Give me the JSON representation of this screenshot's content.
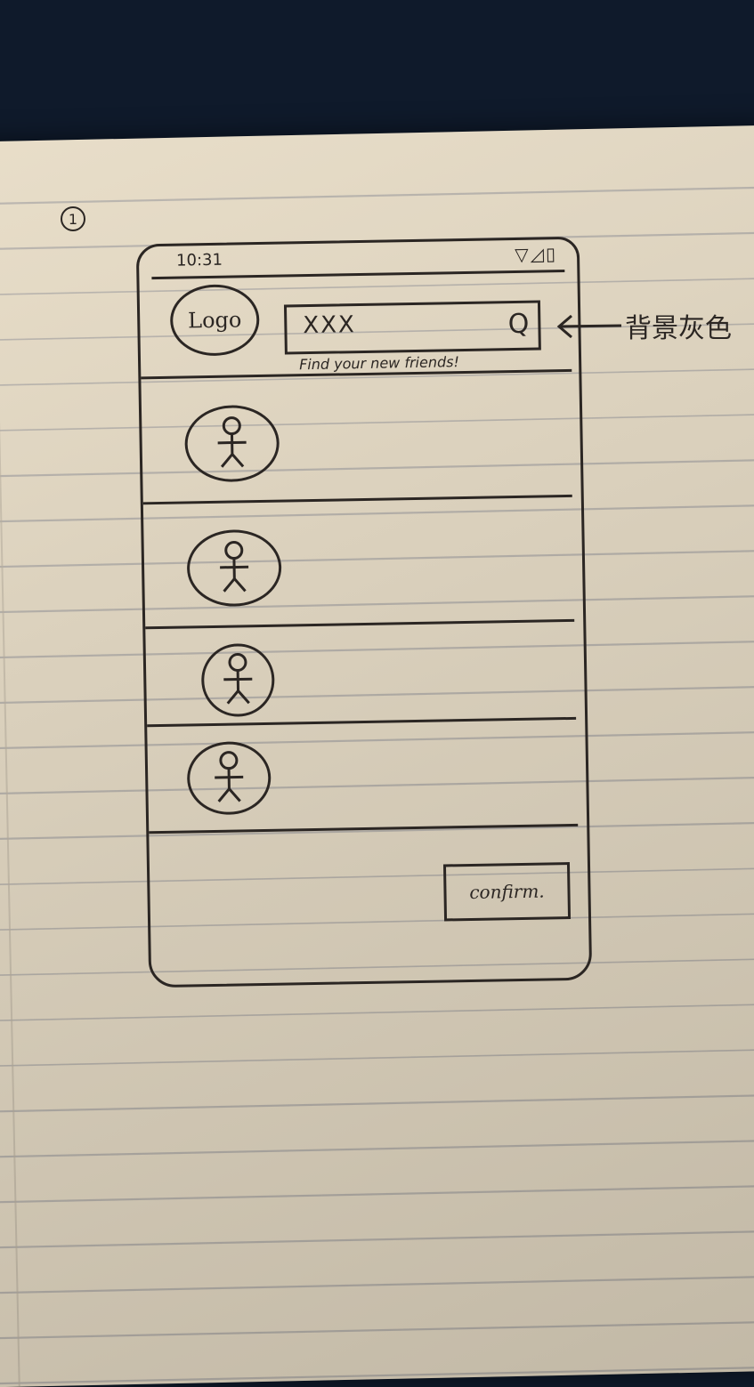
{
  "page_number": "1",
  "status_bar": {
    "time": "10:31",
    "icons": "▽◿▯"
  },
  "logo_text": "Logo",
  "search": {
    "value": "XXX",
    "caption": "Find your new friends!"
  },
  "friends": [
    {
      "avatar_icon": "stick-figure-icon"
    },
    {
      "avatar_icon": "stick-figure-icon"
    },
    {
      "avatar_icon": "stick-figure-icon"
    },
    {
      "avatar_icon": "stick-figure-icon"
    }
  ],
  "confirm_label": "confirm.",
  "annotation": "背景灰色"
}
